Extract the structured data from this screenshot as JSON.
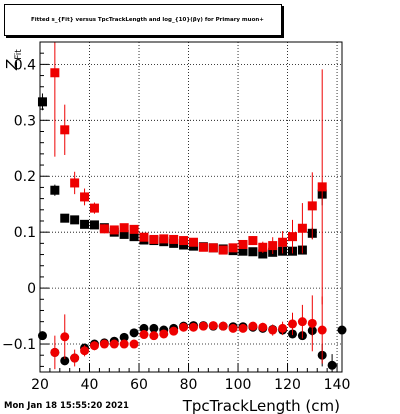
{
  "title": "Fitted s_{Fit} versus TpcTrackLength and log_{10}(βγ) for Primary muon+",
  "timestamp": "Mon Jan 18 15:55:20 2021",
  "chart_data": {
    "type": "scatter",
    "title": "Fitted s_{Fit} versus TpcTrackLength and log_{10}(βγ) for Primary muon+",
    "xlabel": "TpcTrackLength (cm)",
    "ylabel": "Z_{Fit}",
    "xlim": [
      20,
      142
    ],
    "ylim": [
      -0.15,
      0.44
    ],
    "xticks": [
      20,
      40,
      60,
      80,
      100,
      120,
      140
    ],
    "xtick_labels": [
      "20",
      "40",
      "60",
      "80",
      "100",
      "120",
      "140"
    ],
    "yticks": [
      -0.1,
      0,
      0.1,
      0.2,
      0.3,
      0.4
    ],
    "ytick_labels": [
      "−0.1",
      "0",
      "0.1",
      "0.2",
      "0.3",
      "0.4"
    ],
    "grid": true,
    "series": [
      {
        "color": "#000000",
        "marker": "square",
        "x": [
          21,
          26,
          30,
          34,
          38,
          42,
          46,
          50,
          54,
          58,
          62,
          66,
          70,
          74,
          78,
          82,
          86,
          90,
          94,
          98,
          102,
          106,
          110,
          114,
          118,
          122,
          126,
          130,
          134
        ],
        "y": [
          0.333,
          0.175,
          0.125,
          0.122,
          0.114,
          0.113,
          0.108,
          0.1,
          0.096,
          0.092,
          0.086,
          0.085,
          0.083,
          0.08,
          0.077,
          0.075,
          0.074,
          0.072,
          0.07,
          0.067,
          0.066,
          0.065,
          0.061,
          0.064,
          0.066,
          0.066,
          0.068,
          0.098,
          0.168
        ],
        "yerr": [
          0.015,
          0.01,
          0.006,
          0.006,
          0.005,
          0.004,
          0.004,
          0.004,
          0.004,
          0.004,
          0.004,
          0.004,
          0.003,
          0.003,
          0.003,
          0.003,
          0.003,
          0.003,
          0.003,
          0.003,
          0.003,
          0.003,
          0.003,
          0.003,
          0.004,
          0.004,
          0.005,
          0.01,
          0.02
        ]
      },
      {
        "color": "#ee0000",
        "marker": "square",
        "x": [
          26,
          30,
          34,
          38,
          42,
          46,
          50,
          54,
          58,
          62,
          66,
          70,
          74,
          78,
          82,
          86,
          90,
          94,
          98,
          102,
          106,
          110,
          114,
          118,
          122,
          126,
          130,
          134
        ],
        "y": [
          0.385,
          0.283,
          0.188,
          0.163,
          0.143,
          0.106,
          0.104,
          0.108,
          0.105,
          0.091,
          0.087,
          0.088,
          0.087,
          0.085,
          0.082,
          0.073,
          0.072,
          0.068,
          0.072,
          0.078,
          0.085,
          0.073,
          0.076,
          0.082,
          0.092,
          0.107,
          0.147,
          0.181
        ],
        "yerr": [
          0.15,
          0.045,
          0.02,
          0.015,
          0.01,
          0.008,
          0.006,
          0.006,
          0.005,
          0.005,
          0.005,
          0.005,
          0.005,
          0.005,
          0.005,
          0.006,
          0.006,
          0.006,
          0.006,
          0.007,
          0.008,
          0.01,
          0.015,
          0.02,
          0.03,
          0.045,
          0.06,
          0.21
        ]
      },
      {
        "color": "#000000",
        "marker": "circle",
        "x": [
          21,
          26,
          30,
          34,
          38,
          42,
          46,
          50,
          54,
          58,
          62,
          66,
          70,
          74,
          78,
          82,
          86,
          90,
          94,
          98,
          102,
          106,
          110,
          114,
          118,
          122,
          126,
          130,
          134,
          138,
          142
        ],
        "y": [
          -0.085,
          -0.115,
          -0.13,
          -0.125,
          -0.107,
          -0.1,
          -0.098,
          -0.095,
          -0.088,
          -0.08,
          -0.072,
          -0.072,
          -0.075,
          -0.072,
          -0.068,
          -0.067,
          -0.067,
          -0.068,
          -0.068,
          -0.069,
          -0.069,
          -0.07,
          -0.072,
          -0.074,
          -0.075,
          -0.082,
          -0.085,
          -0.076,
          -0.12,
          -0.138,
          -0.075
        ],
        "yerr": [
          0.006,
          0.008,
          0.006,
          0.006,
          0.005,
          0.004,
          0.004,
          0.004,
          0.004,
          0.004,
          0.004,
          0.003,
          0.003,
          0.003,
          0.003,
          0.003,
          0.003,
          0.003,
          0.003,
          0.003,
          0.003,
          0.003,
          0.003,
          0.004,
          0.004,
          0.005,
          0.006,
          0.01,
          0.02,
          0.02,
          0.01
        ]
      },
      {
        "color": "#ee0000",
        "marker": "circle",
        "x": [
          26,
          30,
          34,
          38,
          42,
          46,
          50,
          54,
          58,
          62,
          66,
          70,
          74,
          78,
          82,
          86,
          90,
          94,
          98,
          102,
          106,
          110,
          114,
          118,
          122,
          126,
          130,
          134
        ],
        "y": [
          -0.115,
          -0.087,
          -0.125,
          -0.112,
          -0.103,
          -0.1,
          -0.1,
          -0.1,
          -0.1,
          -0.083,
          -0.085,
          -0.082,
          -0.077,
          -0.07,
          -0.07,
          -0.068,
          -0.067,
          -0.068,
          -0.072,
          -0.072,
          -0.068,
          -0.07,
          -0.075,
          -0.072,
          -0.064,
          -0.06,
          -0.063,
          -0.075
        ],
        "yerr": [
          0.03,
          0.04,
          0.015,
          0.01,
          0.008,
          0.007,
          0.006,
          0.006,
          0.006,
          0.005,
          0.005,
          0.005,
          0.005,
          0.005,
          0.005,
          0.005,
          0.005,
          0.005,
          0.006,
          0.006,
          0.006,
          0.008,
          0.01,
          0.012,
          0.02,
          0.03,
          0.05,
          0.06
        ]
      }
    ]
  }
}
